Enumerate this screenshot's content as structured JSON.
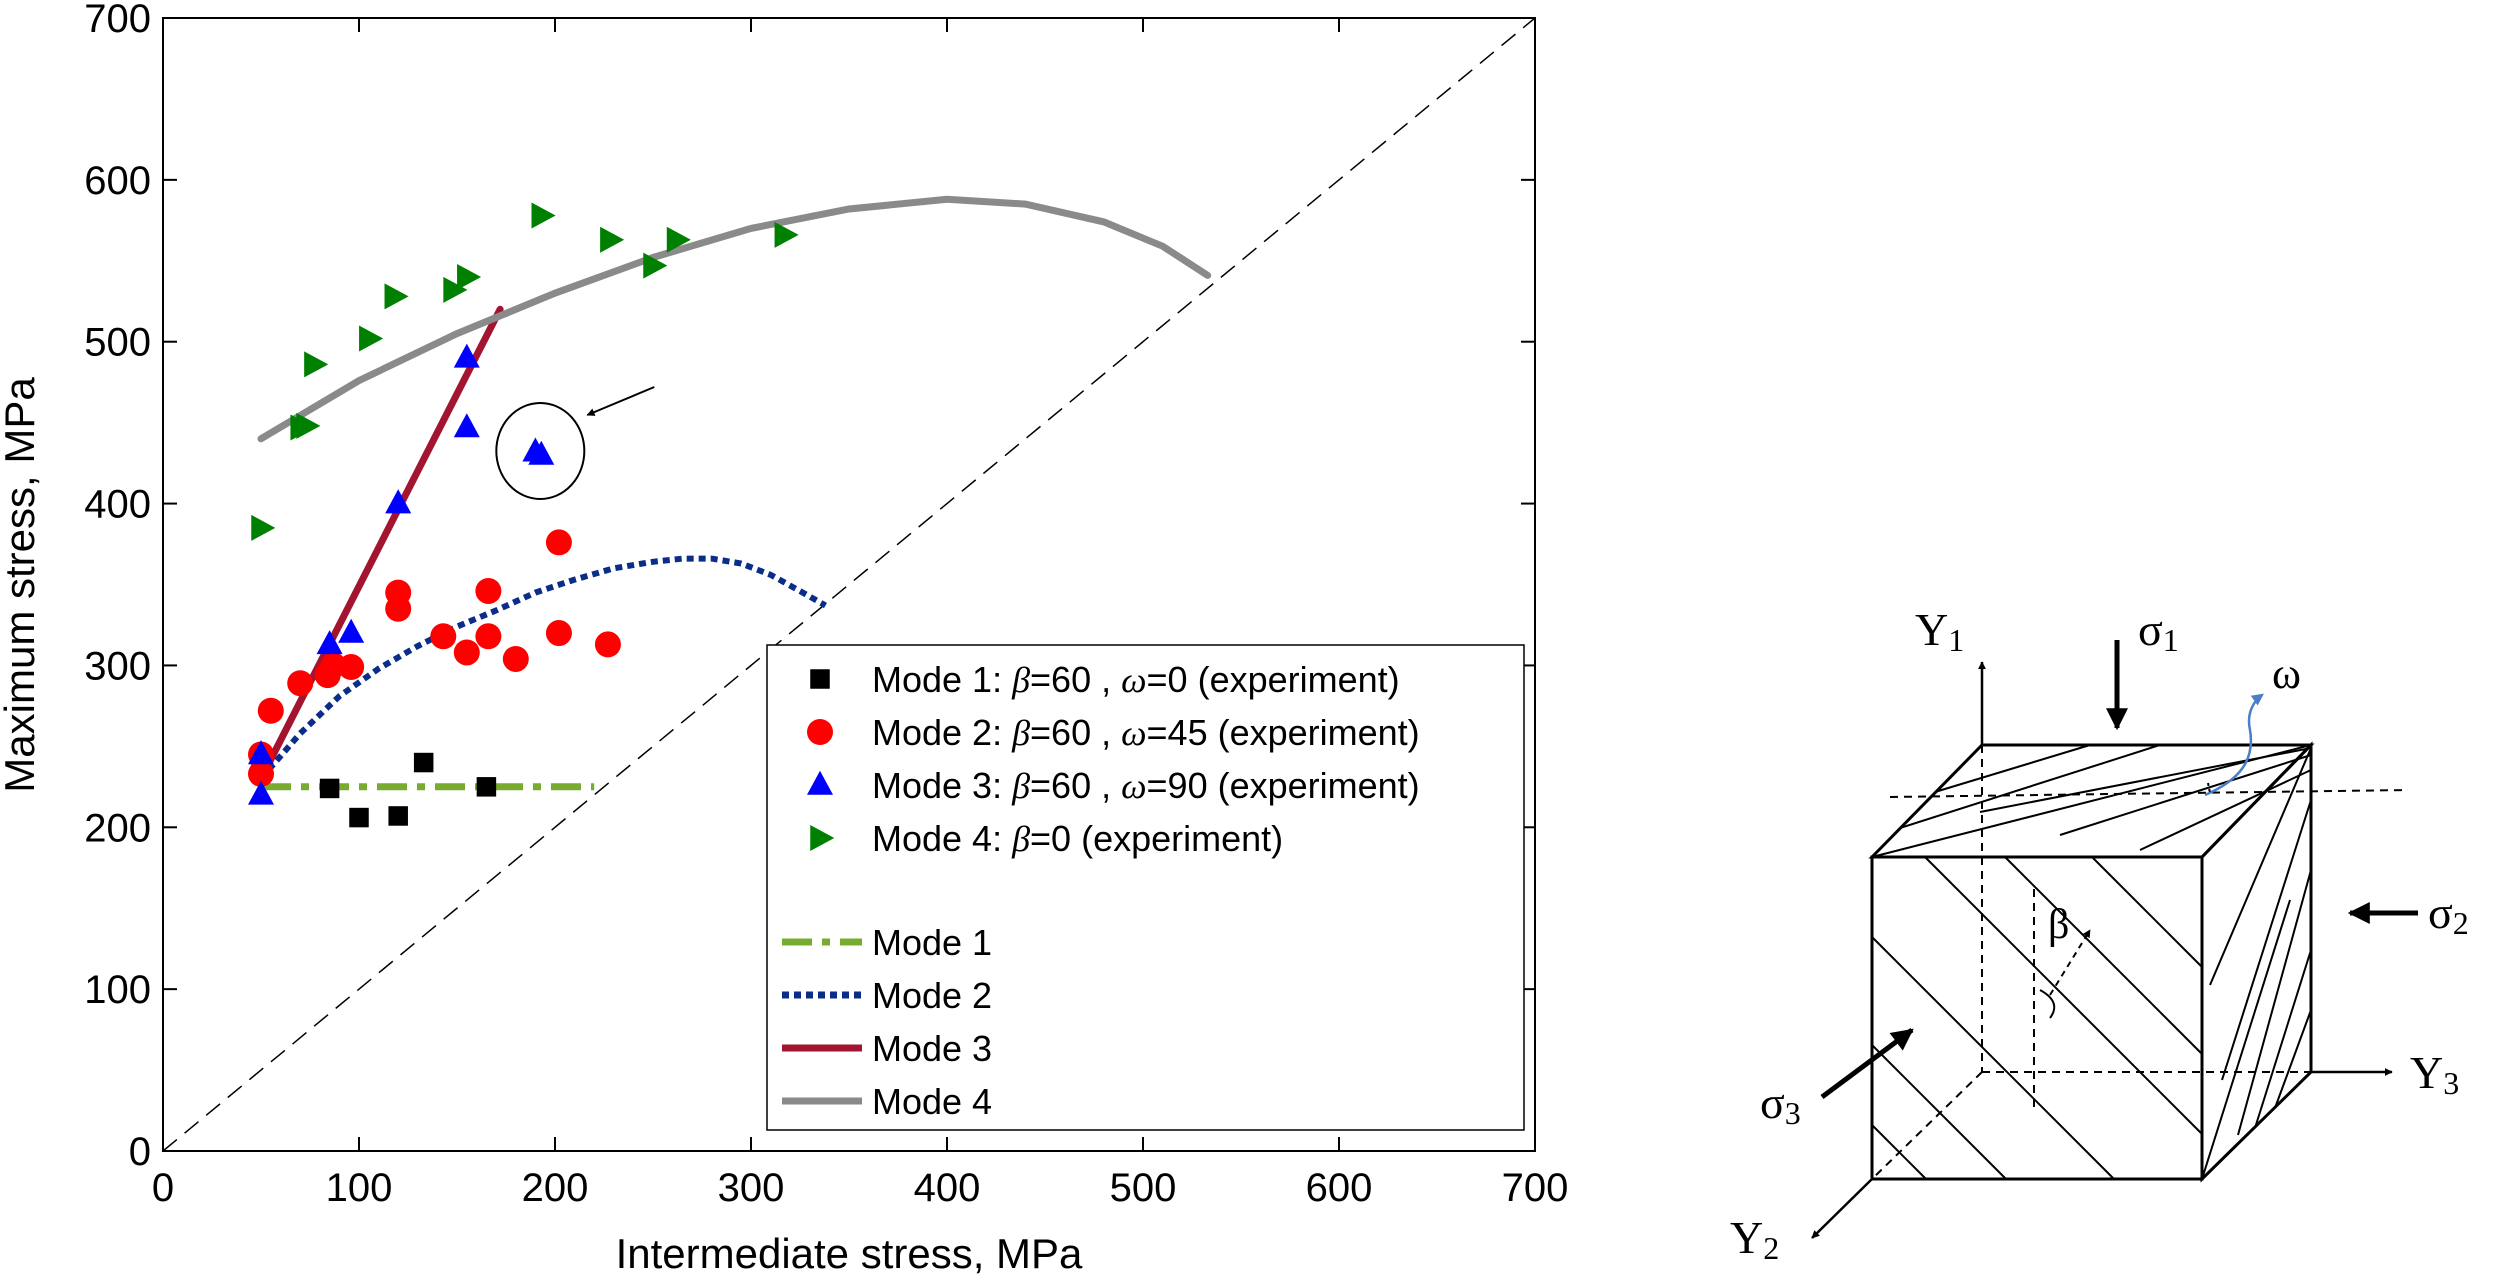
{
  "chart_data": {
    "type": "scatter",
    "xlabel": "Intermediate stress, MPa",
    "ylabel": "Maximum stress,  MPa",
    "xlim": [
      0,
      700
    ],
    "ylim": [
      0,
      700
    ],
    "xticks": [
      0,
      100,
      200,
      300,
      400,
      500,
      600,
      700
    ],
    "yticks": [
      0,
      100,
      200,
      300,
      400,
      500,
      600,
      700
    ],
    "xtick_labels": [
      "0",
      "100",
      "200",
      "300",
      "400",
      "500",
      "600",
      "700"
    ],
    "ytick_labels": [
      "0",
      "100",
      "200",
      "300",
      "400",
      "500",
      "600",
      "700"
    ],
    "grid": false,
    "legend_position": "bottom-right",
    "reference_line": {
      "style": "dashed",
      "color": "#000000",
      "points": [
        [
          0,
          0
        ],
        [
          700,
          700
        ]
      ]
    },
    "series": [
      {
        "name": "Mode 1: β=60 , ω=0 (experiment)",
        "label_parts": [
          "Mode 1: ",
          "β",
          "=60 , ",
          "ω",
          "=0 (experiment)"
        ],
        "kind": "scatter",
        "marker": "square",
        "color": "#000000",
        "points": [
          [
            50,
            240
          ],
          [
            85,
            224
          ],
          [
            100,
            206
          ],
          [
            120,
            207
          ],
          [
            133,
            240
          ],
          [
            165,
            225
          ]
        ]
      },
      {
        "name": "Mode 2: β=60 , ω=45 (experiment)",
        "label_parts": [
          "Mode 2: ",
          "β",
          "=60 , ",
          "ω",
          "=45 (experiment)"
        ],
        "kind": "scatter",
        "marker": "circle",
        "color": "#ff0000",
        "points": [
          [
            50,
            245
          ],
          [
            50,
            233
          ],
          [
            55,
            272
          ],
          [
            70,
            289
          ],
          [
            84,
            294
          ],
          [
            87,
            300
          ],
          [
            96,
            299
          ],
          [
            120,
            345
          ],
          [
            120,
            335
          ],
          [
            143,
            318
          ],
          [
            155,
            308
          ],
          [
            166,
            346
          ],
          [
            166,
            318
          ],
          [
            180,
            304
          ],
          [
            202,
            376
          ],
          [
            202,
            320
          ],
          [
            227,
            313
          ]
        ]
      },
      {
        "name": "Mode 3: β=60 , ω=90 (experiment)",
        "label_parts": [
          "Mode 3: ",
          "β",
          "=60 , ",
          "ω",
          "=90 (experiment)"
        ],
        "kind": "scatter",
        "marker": "triangle-up",
        "color": "#0000ff",
        "points": [
          [
            50,
            220
          ],
          [
            50,
            245
          ],
          [
            85,
            313
          ],
          [
            96,
            320
          ],
          [
            120,
            400
          ],
          [
            155,
            447
          ],
          [
            155,
            490
          ],
          [
            190,
            432
          ],
          [
            193,
            430
          ]
        ]
      },
      {
        "name": "Mode 4: β=0 (experiment)",
        "label_parts": [
          "Mode 4: ",
          "β",
          "=0 (experiment)"
        ],
        "kind": "scatter",
        "marker": "triangle-right",
        "color": "#008000",
        "points": [
          [
            50,
            385
          ],
          [
            70,
            447
          ],
          [
            73,
            448
          ],
          [
            77,
            486
          ],
          [
            105,
            502
          ],
          [
            118,
            528
          ],
          [
            148,
            532
          ],
          [
            155,
            540
          ],
          [
            193,
            578
          ],
          [
            228,
            563
          ],
          [
            250,
            547
          ],
          [
            262,
            563
          ],
          [
            317,
            566
          ]
        ]
      },
      {
        "name": "Mode 1",
        "kind": "line",
        "style": "dashdot",
        "color": "#77ac30",
        "points": [
          [
            50,
            225
          ],
          [
            220,
            225
          ]
        ]
      },
      {
        "name": "Mode 2",
        "kind": "line",
        "style": "dotted",
        "color": "#0b2d8a",
        "points": [
          [
            50,
            230
          ],
          [
            70,
            258
          ],
          [
            90,
            281
          ],
          [
            110,
            298
          ],
          [
            130,
            312
          ],
          [
            150,
            324
          ],
          [
            170,
            334
          ],
          [
            190,
            345
          ],
          [
            210,
            353
          ],
          [
            230,
            360
          ],
          [
            250,
            364
          ],
          [
            265,
            366
          ],
          [
            280,
            366
          ],
          [
            295,
            363
          ],
          [
            310,
            356
          ],
          [
            325,
            346
          ],
          [
            338,
            337
          ]
        ]
      },
      {
        "name": "Mode 3",
        "kind": "line",
        "style": "solid",
        "color": "#a2142f",
        "points": [
          [
            50,
            230
          ],
          [
            172,
            520
          ]
        ]
      },
      {
        "name": "Mode 4",
        "kind": "line",
        "style": "solid",
        "color": "#8a8a8a",
        "points": [
          [
            50,
            440
          ],
          [
            100,
            476
          ],
          [
            150,
            505
          ],
          [
            200,
            530
          ],
          [
            250,
            552
          ],
          [
            300,
            570
          ],
          [
            350,
            582
          ],
          [
            400,
            588
          ],
          [
            440,
            585
          ],
          [
            480,
            574
          ],
          [
            510,
            559
          ],
          [
            533,
            541
          ]
        ]
      }
    ],
    "annotation": {
      "type": "circle-with-arrow",
      "center": [
        192,
        430
      ]
    }
  },
  "diagram": {
    "y1_label": "Y",
    "y1_sub": "1",
    "y2_label": "Y",
    "y2_sub": "2",
    "y3_label": "Y",
    "y3_sub": "3",
    "sigma1_label": "σ",
    "sigma1_sub": "1",
    "sigma2_label": "σ",
    "sigma2_sub": "2",
    "sigma3_label": "σ",
    "sigma3_sub": "3",
    "beta_label": "β",
    "omega_label": "ω",
    "colors": {
      "omega_arrow": "#4a7ec8"
    }
  }
}
